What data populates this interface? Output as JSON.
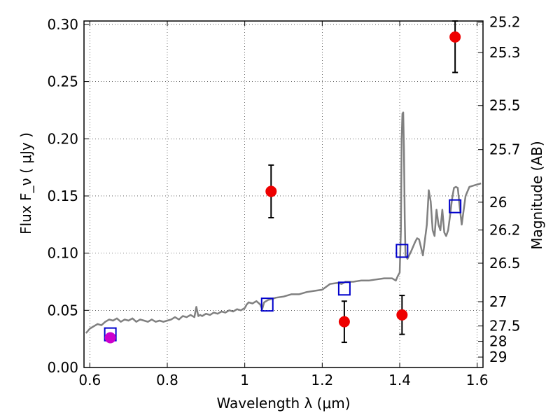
{
  "chart_data": {
    "type": "scatter",
    "xlabel": "Wavelength  λ (μm)",
    "ylabel": "Flux  F_ν  ( μJy )",
    "ylabel_right": "Magnitude (AB)",
    "xlim": [
      0.585,
      1.615
    ],
    "ylim": [
      0.0,
      0.303
    ],
    "grid": true,
    "x_ticks": [
      0.6,
      0.8,
      1.0,
      1.2,
      1.4,
      1.6
    ],
    "x_tick_labels": [
      "0.6",
      "0.8",
      "1",
      "1.2",
      "1.4",
      "1.6"
    ],
    "y_ticks": [
      0.0,
      0.05,
      0.1,
      0.15,
      0.2,
      0.25,
      0.3
    ],
    "y_tick_labels": [
      "0.00",
      "0.05",
      "0.10",
      "0.15",
      "0.20",
      "0.25",
      "0.30"
    ],
    "mag_ticks": [
      25.2,
      25.3,
      25.5,
      25.7,
      26,
      26.2,
      26.5,
      27,
      27.5,
      28,
      29
    ],
    "mag_tick_labels": [
      "25.2",
      "25.3",
      "25.5",
      "25.7",
      "26",
      "26.2",
      "26.5",
      "27",
      "27.5",
      "28",
      "29"
    ],
    "series": [
      {
        "kind": "line",
        "color": "#808080",
        "x": [
          0.59,
          0.6,
          0.61,
          0.62,
          0.63,
          0.64,
          0.65,
          0.66,
          0.67,
          0.68,
          0.69,
          0.7,
          0.71,
          0.72,
          0.73,
          0.74,
          0.75,
          0.76,
          0.77,
          0.78,
          0.79,
          0.8,
          0.81,
          0.82,
          0.83,
          0.84,
          0.85,
          0.86,
          0.87,
          0.875,
          0.88,
          0.885,
          0.89,
          0.9,
          0.91,
          0.92,
          0.93,
          0.94,
          0.95,
          0.96,
          0.97,
          0.98,
          0.99,
          1.0,
          1.005,
          1.01,
          1.02,
          1.03,
          1.04,
          1.045,
          1.05,
          1.06,
          1.07,
          1.08,
          1.1,
          1.12,
          1.14,
          1.16,
          1.18,
          1.2,
          1.22,
          1.24,
          1.25,
          1.26,
          1.28,
          1.3,
          1.32,
          1.34,
          1.36,
          1.38,
          1.39,
          1.395,
          1.4,
          1.403,
          1.405,
          1.407,
          1.409,
          1.411,
          1.413,
          1.415,
          1.42,
          1.43,
          1.44,
          1.445,
          1.45,
          1.46,
          1.47,
          1.475,
          1.48,
          1.485,
          1.49,
          1.495,
          1.5,
          1.505,
          1.51,
          1.515,
          1.52,
          1.525,
          1.53,
          1.535,
          1.54,
          1.545,
          1.55,
          1.555,
          1.56,
          1.57,
          1.58,
          1.59,
          1.6,
          1.61
        ],
        "y": [
          0.03,
          0.034,
          0.036,
          0.038,
          0.037,
          0.04,
          0.042,
          0.041,
          0.043,
          0.04,
          0.042,
          0.041,
          0.043,
          0.04,
          0.042,
          0.041,
          0.04,
          0.042,
          0.04,
          0.041,
          0.04,
          0.041,
          0.042,
          0.044,
          0.042,
          0.045,
          0.044,
          0.046,
          0.044,
          0.053,
          0.045,
          0.046,
          0.045,
          0.047,
          0.046,
          0.048,
          0.047,
          0.049,
          0.048,
          0.05,
          0.049,
          0.051,
          0.05,
          0.052,
          0.055,
          0.057,
          0.056,
          0.058,
          0.055,
          0.051,
          0.057,
          0.059,
          0.06,
          0.061,
          0.062,
          0.064,
          0.064,
          0.066,
          0.067,
          0.068,
          0.073,
          0.074,
          0.073,
          0.075,
          0.075,
          0.076,
          0.076,
          0.077,
          0.078,
          0.078,
          0.076,
          0.08,
          0.083,
          0.12,
          0.2,
          0.222,
          0.223,
          0.19,
          0.13,
          0.098,
          0.095,
          0.102,
          0.11,
          0.113,
          0.112,
          0.098,
          0.125,
          0.155,
          0.145,
          0.12,
          0.115,
          0.138,
          0.125,
          0.12,
          0.138,
          0.118,
          0.115,
          0.12,
          0.133,
          0.147,
          0.157,
          0.158,
          0.157,
          0.14,
          0.125,
          0.15,
          0.158,
          0.159,
          0.16,
          0.161
        ]
      },
      {
        "kind": "markers",
        "marker": "open-square",
        "color": "#0000cc",
        "x": [
          0.653,
          1.058,
          1.257,
          1.406,
          1.543
        ],
        "y": [
          0.029,
          0.055,
          0.069,
          0.102,
          0.141
        ]
      },
      {
        "kind": "errorbar",
        "marker": "filled-circle",
        "color": "#ee0000",
        "x": [
          1.068,
          1.257,
          1.406,
          1.543
        ],
        "y": [
          0.154,
          0.04,
          0.046,
          0.289
        ],
        "yerr": [
          0.023,
          0.018,
          0.017,
          0.031
        ]
      },
      {
        "kind": "errorbar",
        "marker": "filled-circle",
        "color": "#cc00cc",
        "x": [
          0.653
        ],
        "y": [
          0.026
        ],
        "yerr": [
          0.003
        ]
      }
    ]
  }
}
